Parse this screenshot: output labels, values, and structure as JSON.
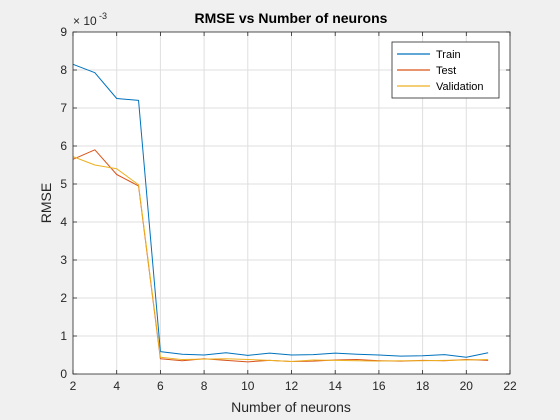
{
  "chart_data": {
    "type": "line",
    "title": "RMSE vs Number of neurons",
    "xlabel": "Number of neurons",
    "ylabel": "RMSE",
    "exponent_label": "× 10",
    "exponent_power": "-3",
    "xlim": [
      2,
      22
    ],
    "ylim": [
      0,
      9
    ],
    "xticks": [
      2,
      4,
      6,
      8,
      10,
      12,
      14,
      16,
      18,
      20,
      22
    ],
    "yticks": [
      0,
      1,
      2,
      3,
      4,
      5,
      6,
      7,
      8,
      9
    ],
    "grid": true,
    "legend_position": "top-right",
    "x": [
      2,
      3,
      4,
      5,
      6,
      7,
      8,
      9,
      10,
      11,
      12,
      13,
      14,
      15,
      16,
      17,
      18,
      19,
      20,
      21
    ],
    "series": [
      {
        "name": "Train",
        "color": "#0072BD",
        "values": [
          8.15,
          7.93,
          7.25,
          7.2,
          0.59,
          0.52,
          0.5,
          0.56,
          0.49,
          0.55,
          0.5,
          0.51,
          0.55,
          0.52,
          0.5,
          0.47,
          0.48,
          0.51,
          0.44,
          0.56
        ]
      },
      {
        "name": "Test",
        "color": "#D95319",
        "values": [
          5.65,
          5.9,
          5.25,
          4.95,
          0.4,
          0.35,
          0.4,
          0.36,
          0.32,
          0.36,
          0.33,
          0.34,
          0.37,
          0.38,
          0.35,
          0.34,
          0.36,
          0.35,
          0.38,
          0.36
        ]
      },
      {
        "name": "Validation",
        "color": "#EDB120",
        "values": [
          5.72,
          5.5,
          5.4,
          4.98,
          0.44,
          0.38,
          0.39,
          0.4,
          0.38,
          0.36,
          0.33,
          0.37,
          0.36,
          0.35,
          0.34,
          0.35,
          0.35,
          0.36,
          0.37,
          0.38
        ]
      }
    ]
  }
}
